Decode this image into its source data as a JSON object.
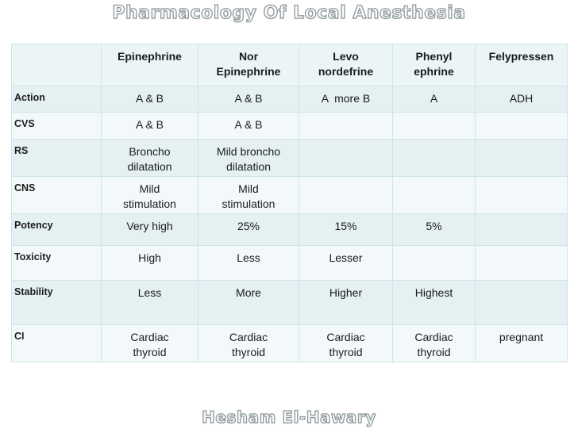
{
  "slide": {
    "title": "Pharmacology Of Local Anesthesia",
    "footer": "Hesham El-Hawary"
  },
  "table": {
    "column_headers": [
      "",
      "Epinephrine",
      "Nor\nEpinephrine",
      "Levo\nnordefrine",
      "Phenyl\nephrine",
      "Felypressen"
    ],
    "rows": [
      {
        "label": "Action",
        "cells": [
          "A & B",
          "A & B",
          "A  more B",
          "A",
          "ADH"
        ]
      },
      {
        "label": "CVS",
        "cells": [
          "A & B",
          "A & B",
          "",
          "",
          ""
        ]
      },
      {
        "label": "RS",
        "cells": [
          "Broncho\ndilatation",
          "Mild broncho\ndilatation",
          "",
          "",
          ""
        ]
      },
      {
        "label": "CNS",
        "cells": [
          "Mild\nstimulation",
          "Mild\nstimulation",
          "",
          "",
          ""
        ]
      },
      {
        "label": "Potency",
        "cells": [
          "Very high",
          "25%",
          "15%",
          "5%",
          ""
        ]
      },
      {
        "label": "Toxicity",
        "cells": [
          "High",
          "Less",
          "Lesser",
          "",
          ""
        ]
      },
      {
        "label": "Stability",
        "cells": [
          "Less",
          "More",
          "Higher",
          "Highest",
          ""
        ]
      },
      {
        "label": "CI",
        "cells": [
          "Cardiac\nthyroid",
          "Cardiac\nthyroid",
          "Cardiac\nthyroid",
          "Cardiac\nthyroid",
          "pregnant"
        ]
      }
    ]
  },
  "colors": {
    "band_dark": "#e4f0f2",
    "band_light": "#f3f9fa",
    "header_row_bg": "#ebf5f6",
    "cell_border": "#cfe3e6",
    "title_outline": "#8f999b",
    "title_fill": "#fbfcfd",
    "text": "#1b1b1b"
  }
}
